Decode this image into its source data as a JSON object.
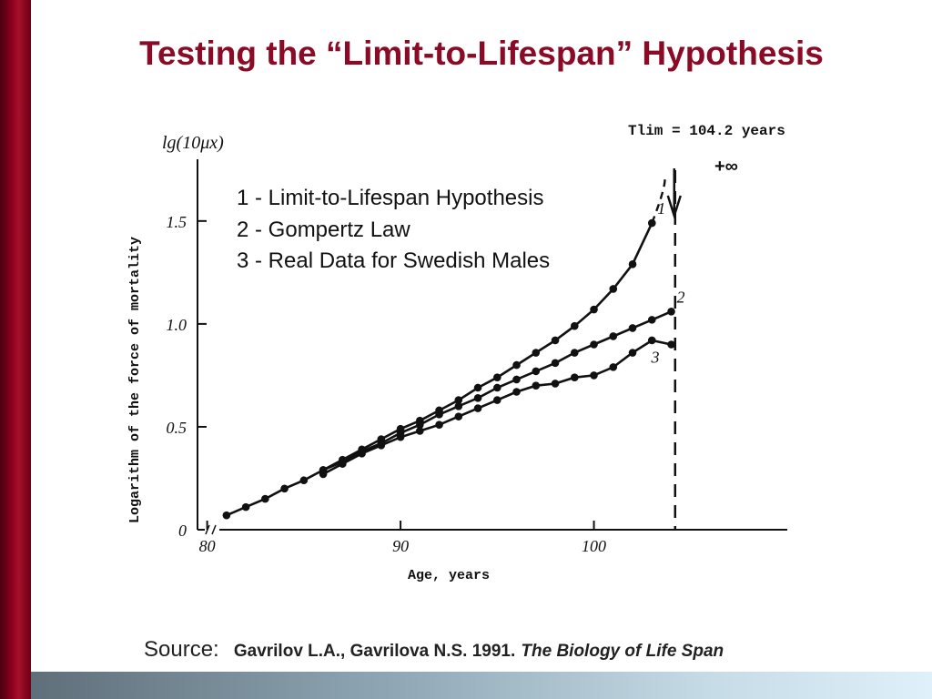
{
  "slide": {
    "title": "Testing the “Limit-to-Lifespan” Hypothesis",
    "source_label": "Source:",
    "source_ref": "Gavrilov L.A., Gavrilova N.S. 1991.",
    "source_book": "The Biology of Life Span"
  },
  "colors": {
    "title": "#8b0a25",
    "ink": "#111111"
  },
  "chart_data": {
    "type": "line",
    "title": "",
    "xlabel": "Age, years",
    "ylabel": "Logarithm of the force of mortality",
    "ylabel_top": "lg(10μx)",
    "annotation_tlim": "Tlim = 104.2 years",
    "annotation_inf": "+∞",
    "xlim": [
      79.5,
      110
    ],
    "ylim": [
      0,
      1.8
    ],
    "x_ticks": [
      "80",
      "90",
      "100"
    ],
    "x_tick_values": [
      80,
      90,
      100
    ],
    "y_ticks": [
      "0",
      "0.5",
      "1.0",
      "1.5"
    ],
    "y_tick_values": [
      0,
      0.5,
      1.0,
      1.5
    ],
    "limit_age": 104.2,
    "legend": [
      "1 - Limit-to-Lifespan Hypothesis",
      "2 - Gompertz Law",
      "3 - Real Data for Swedish Males"
    ],
    "series": [
      {
        "name": "1",
        "x": [
          86,
          87,
          88,
          89,
          90,
          91,
          92,
          93,
          94,
          95,
          96,
          97,
          98,
          99,
          100,
          101,
          102,
          103
        ],
        "values": [
          0.29,
          0.34,
          0.39,
          0.44,
          0.49,
          0.53,
          0.58,
          0.63,
          0.69,
          0.74,
          0.8,
          0.86,
          0.92,
          0.99,
          1.07,
          1.17,
          1.29,
          1.49
        ]
      },
      {
        "name": "2",
        "x": [
          81,
          82,
          83,
          84,
          85,
          86,
          87,
          88,
          89,
          90,
          91,
          92,
          93,
          94,
          95,
          96,
          97,
          98,
          99,
          100,
          101,
          102,
          103,
          104
        ],
        "values": [
          0.07,
          0.11,
          0.15,
          0.2,
          0.24,
          0.29,
          0.33,
          0.38,
          0.42,
          0.47,
          0.51,
          0.56,
          0.6,
          0.64,
          0.69,
          0.73,
          0.77,
          0.81,
          0.86,
          0.9,
          0.94,
          0.98,
          1.02,
          1.06
        ]
      },
      {
        "name": "3",
        "x": [
          86,
          87,
          88,
          89,
          90,
          91,
          92,
          93,
          94,
          95,
          96,
          97,
          98,
          99,
          100,
          101,
          102,
          103,
          104
        ],
        "values": [
          0.27,
          0.32,
          0.37,
          0.41,
          0.45,
          0.48,
          0.51,
          0.55,
          0.59,
          0.63,
          0.67,
          0.7,
          0.71,
          0.74,
          0.75,
          0.79,
          0.86,
          0.92,
          0.9
        ]
      }
    ]
  }
}
